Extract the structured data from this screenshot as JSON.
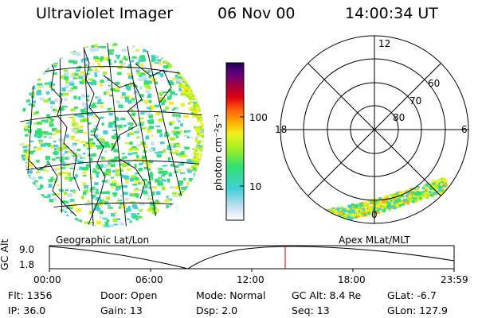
{
  "header": {
    "instrument": "Ultraviolet Imager",
    "date": "06 Nov 00",
    "time": "14:00:34 UT"
  },
  "geo_panel": {
    "label": "Geographic Lat/Lon"
  },
  "polar_panel": {
    "label": "Apex MLat/MLT",
    "mlt_labels": {
      "top": "12",
      "left": "18",
      "right": "6",
      "bottom": "0"
    },
    "lat_rings": [
      "60",
      "70",
      "80"
    ]
  },
  "colorbar": {
    "unit_label": "photon cm⁻²s⁻¹",
    "ticks": [
      "100",
      "10"
    ],
    "colors": [
      "#ffffff",
      "#c8e0f0",
      "#40d0d8",
      "#30e070",
      "#a8f020",
      "#f0f020",
      "#ffb000",
      "#ff6010",
      "#e00010",
      "#a00040",
      "#600080",
      "#200050"
    ]
  },
  "altitude_panel": {
    "ylabel": "GC Alt",
    "ticks": [
      "9.0",
      "1.8"
    ],
    "time_ticks": [
      "00:00",
      "06:00",
      "12:00",
      "18:00",
      "23:59"
    ],
    "marker_color": "#cc0000"
  },
  "info": {
    "flt": "Flt: 1356",
    "door": "Door: Open",
    "mode": "Mode: Normal",
    "gc_alt": "GC Alt: 8.4 Re",
    "glat": "GLat:   -6.7",
    "ip": "IP: 36.0",
    "gain": "Gain: 13",
    "dsp": "Dsp:     2.0",
    "seq": "Seq: 13",
    "glon": "GLon: 127.9"
  }
}
